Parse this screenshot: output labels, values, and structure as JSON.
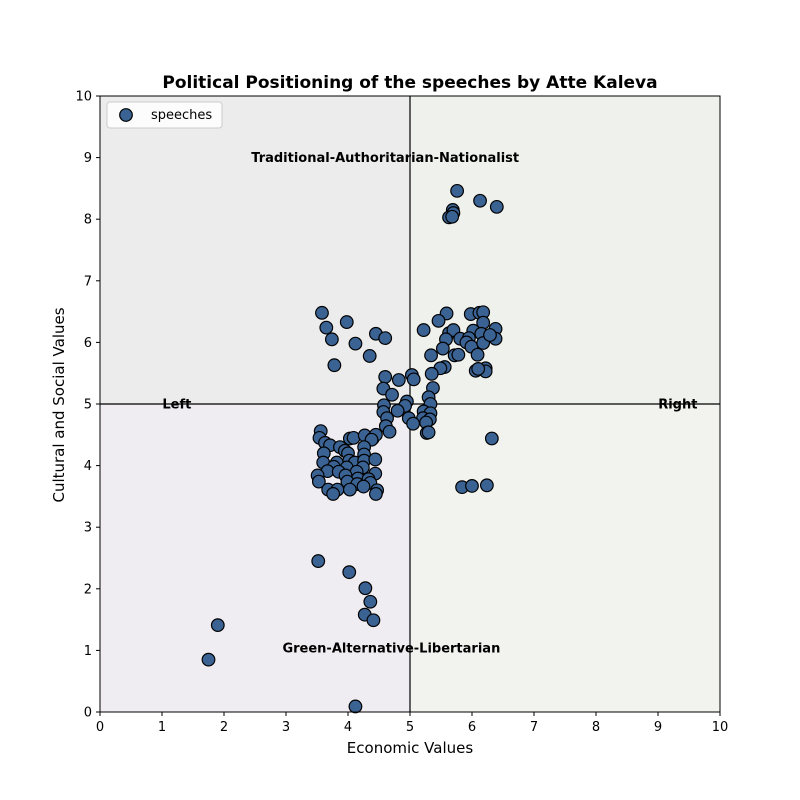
{
  "chart_data": {
    "type": "scatter",
    "title": "Political Positioning of the speeches by Atte Kaleva",
    "xlabel": "Economic Values",
    "ylabel": "Cultural and Social Values",
    "xlim": [
      0,
      10
    ],
    "ylim": [
      0,
      10
    ],
    "xticks": [
      "0",
      "1",
      "2",
      "3",
      "4",
      "5",
      "6",
      "7",
      "8",
      "9",
      "10"
    ],
    "yticks": [
      "0",
      "1",
      "2",
      "3",
      "4",
      "5",
      "6",
      "7",
      "8",
      "9",
      "10"
    ],
    "grid": false,
    "legend": {
      "position": "top-left",
      "entries": [
        "speeches"
      ]
    },
    "quadrant_colors": {
      "top_left": "#ececec",
      "top_right": "#eff1ec",
      "bottom_left": "#f0edf2",
      "bottom_right": "#f2f3ef"
    },
    "divider_lines": {
      "x": 5,
      "y": 5
    },
    "marker_color": "#3a6394",
    "marker_edge": "#000000",
    "annotations": [
      {
        "text": "Traditional-Authoritarian-Nationalist",
        "x": 4.6,
        "y": 9.0
      },
      {
        "text": "Green-Alternative-Libertarian",
        "x": 4.7,
        "y": 1.04
      },
      {
        "text": "Left",
        "x": 1.24,
        "y": 5.0
      },
      {
        "text": "Right",
        "x": 9.32,
        "y": 5.0
      }
    ],
    "series": [
      {
        "name": "speeches",
        "points": [
          [
            5.76,
            8.46
          ],
          [
            6.13,
            8.3
          ],
          [
            6.4,
            8.2
          ],
          [
            5.69,
            8.15
          ],
          [
            5.7,
            8.1
          ],
          [
            5.63,
            8.03
          ],
          [
            5.68,
            8.04
          ],
          [
            3.58,
            6.48
          ],
          [
            3.65,
            6.24
          ],
          [
            3.98,
            6.33
          ],
          [
            3.74,
            6.05
          ],
          [
            4.12,
            5.98
          ],
          [
            4.45,
            6.14
          ],
          [
            4.6,
            6.07
          ],
          [
            4.35,
            5.78
          ],
          [
            3.78,
            5.63
          ],
          [
            5.59,
            6.47
          ],
          [
            5.46,
            6.35
          ],
          [
            5.22,
            6.2
          ],
          [
            5.63,
            6.15
          ],
          [
            5.7,
            6.2
          ],
          [
            5.58,
            6.05
          ],
          [
            5.81,
            6.06
          ],
          [
            5.98,
            6.46
          ],
          [
            6.12,
            6.48
          ],
          [
            6.18,
            6.49
          ],
          [
            6.18,
            6.32
          ],
          [
            6.38,
            6.22
          ],
          [
            6.02,
            6.19
          ],
          [
            6.15,
            6.14
          ],
          [
            6.38,
            6.06
          ],
          [
            5.95,
            6.07
          ],
          [
            5.91,
            6.0
          ],
          [
            5.99,
            5.93
          ],
          [
            6.18,
            5.99
          ],
          [
            5.53,
            5.9
          ],
          [
            5.34,
            5.79
          ],
          [
            5.72,
            5.79
          ],
          [
            5.78,
            5.8
          ],
          [
            6.09,
            5.8
          ],
          [
            6.29,
            6.12
          ],
          [
            6.22,
            5.58
          ],
          [
            6.06,
            5.54
          ],
          [
            6.22,
            5.53
          ],
          [
            5.56,
            5.6
          ],
          [
            5.49,
            5.58
          ],
          [
            6.1,
            5.57
          ],
          [
            5.35,
            5.49
          ],
          [
            4.6,
            5.44
          ],
          [
            5.03,
            5.47
          ],
          [
            5.06,
            5.4
          ],
          [
            4.82,
            5.39
          ],
          [
            4.57,
            5.25
          ],
          [
            5.37,
            5.26
          ],
          [
            4.71,
            5.15
          ],
          [
            5.3,
            5.11
          ],
          [
            4.58,
            4.98
          ],
          [
            4.95,
            5.04
          ],
          [
            4.92,
            4.97
          ],
          [
            5.33,
            5.0
          ],
          [
            4.57,
            4.87
          ],
          [
            4.8,
            4.89
          ],
          [
            5.22,
            4.88
          ],
          [
            5.33,
            4.85
          ],
          [
            4.98,
            4.77
          ],
          [
            5.21,
            4.77
          ],
          [
            4.63,
            4.77
          ],
          [
            5.32,
            4.75
          ],
          [
            5.05,
            4.68
          ],
          [
            5.26,
            4.7
          ],
          [
            4.61,
            4.64
          ],
          [
            4.67,
            4.55
          ],
          [
            5.27,
            4.53
          ],
          [
            5.3,
            4.54
          ],
          [
            3.56,
            4.56
          ],
          [
            3.54,
            4.45
          ],
          [
            4.03,
            4.44
          ],
          [
            4.09,
            4.45
          ],
          [
            4.27,
            4.49
          ],
          [
            4.4,
            4.44
          ],
          [
            4.45,
            4.5
          ],
          [
            4.38,
            4.42
          ],
          [
            3.63,
            4.37
          ],
          [
            3.71,
            4.33
          ],
          [
            3.87,
            4.3
          ],
          [
            4.26,
            4.3
          ],
          [
            3.95,
            4.24
          ],
          [
            3.61,
            4.2
          ],
          [
            4.0,
            4.2
          ],
          [
            4.26,
            4.18
          ],
          [
            3.6,
            4.05
          ],
          [
            3.82,
            4.05
          ],
          [
            4.02,
            4.08
          ],
          [
            4.11,
            4.05
          ],
          [
            4.26,
            4.08
          ],
          [
            4.44,
            4.1
          ],
          [
            3.77,
            3.98
          ],
          [
            3.98,
            3.97
          ],
          [
            4.24,
            3.97
          ],
          [
            4.14,
            3.9
          ],
          [
            3.67,
            3.91
          ],
          [
            3.85,
            3.9
          ],
          [
            4.44,
            3.87
          ],
          [
            3.51,
            3.84
          ],
          [
            3.96,
            3.84
          ],
          [
            4.16,
            3.79
          ],
          [
            4.33,
            3.78
          ],
          [
            3.53,
            3.74
          ],
          [
            3.99,
            3.74
          ],
          [
            4.15,
            3.7
          ],
          [
            4.36,
            3.72
          ],
          [
            3.68,
            3.61
          ],
          [
            3.83,
            3.61
          ],
          [
            4.03,
            3.61
          ],
          [
            4.25,
            3.66
          ],
          [
            4.47,
            3.6
          ],
          [
            4.45,
            3.54
          ],
          [
            3.76,
            3.54
          ],
          [
            5.84,
            3.65
          ],
          [
            6.0,
            3.67
          ],
          [
            6.24,
            3.68
          ],
          [
            6.32,
            4.44
          ],
          [
            3.52,
            2.45
          ],
          [
            4.02,
            2.27
          ],
          [
            4.28,
            2.01
          ],
          [
            4.36,
            1.79
          ],
          [
            4.27,
            1.58
          ],
          [
            4.41,
            1.49
          ],
          [
            1.9,
            1.41
          ],
          [
            1.75,
            0.85
          ],
          [
            4.12,
            0.09
          ]
        ]
      }
    ]
  }
}
